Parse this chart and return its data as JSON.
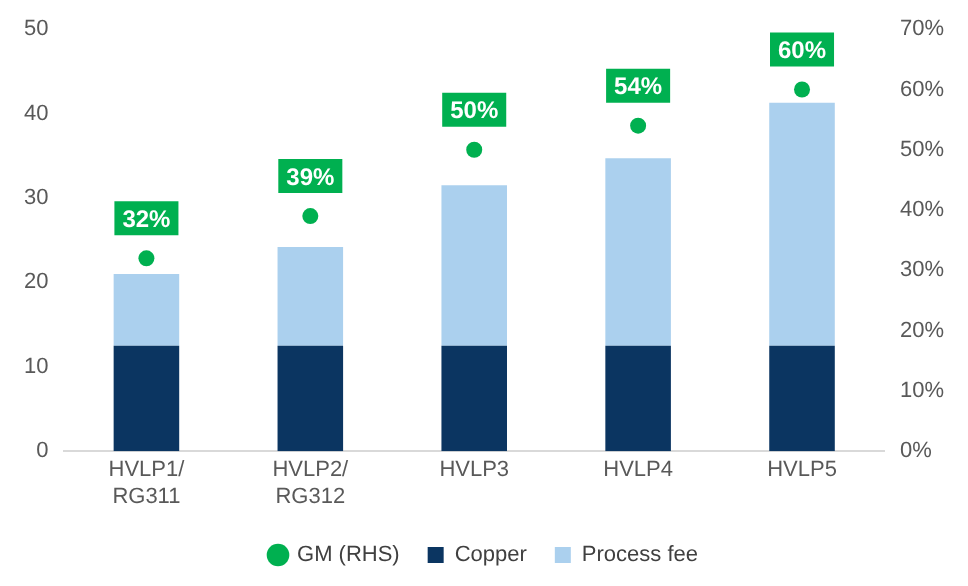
{
  "chart_data": {
    "type": "bar",
    "stacked": true,
    "categories": [
      "HVLP1/\nRG311",
      "HVLP2/\nRG312",
      "HVLP3",
      "HVLP4",
      "HVLP5"
    ],
    "series": [
      {
        "name": "Copper",
        "color": "#0b3561",
        "values": [
          12.5,
          12.5,
          12.5,
          12.5,
          12.5
        ]
      },
      {
        "name": "Process fee",
        "color": "#abd0ee",
        "values": [
          8.5,
          11.7,
          19.0,
          22.2,
          28.8
        ]
      },
      {
        "name": "GM (RHS)",
        "type": "scatter",
        "axis": "y2",
        "color": "#00b050",
        "marker": "circle",
        "values": [
          32,
          39,
          50,
          54,
          60
        ],
        "value_labels": [
          "32%",
          "39%",
          "50%",
          "54%",
          "60%"
        ]
      }
    ],
    "ylim": [
      0,
      50
    ],
    "yticks": [
      0,
      10,
      20,
      30,
      40,
      50
    ],
    "y2lim": [
      0,
      70
    ],
    "y2ticks": [
      {
        "value": 0,
        "label": "0%"
      },
      {
        "value": 10,
        "label": "10%"
      },
      {
        "value": 20,
        "label": "20%"
      },
      {
        "value": 30,
        "label": "30%"
      },
      {
        "value": 40,
        "label": "40%"
      },
      {
        "value": 50,
        "label": "50%"
      },
      {
        "value": 60,
        "label": "60%"
      },
      {
        "value": 70,
        "label": "70%"
      }
    ],
    "grid": false,
    "legend": "bottom"
  }
}
